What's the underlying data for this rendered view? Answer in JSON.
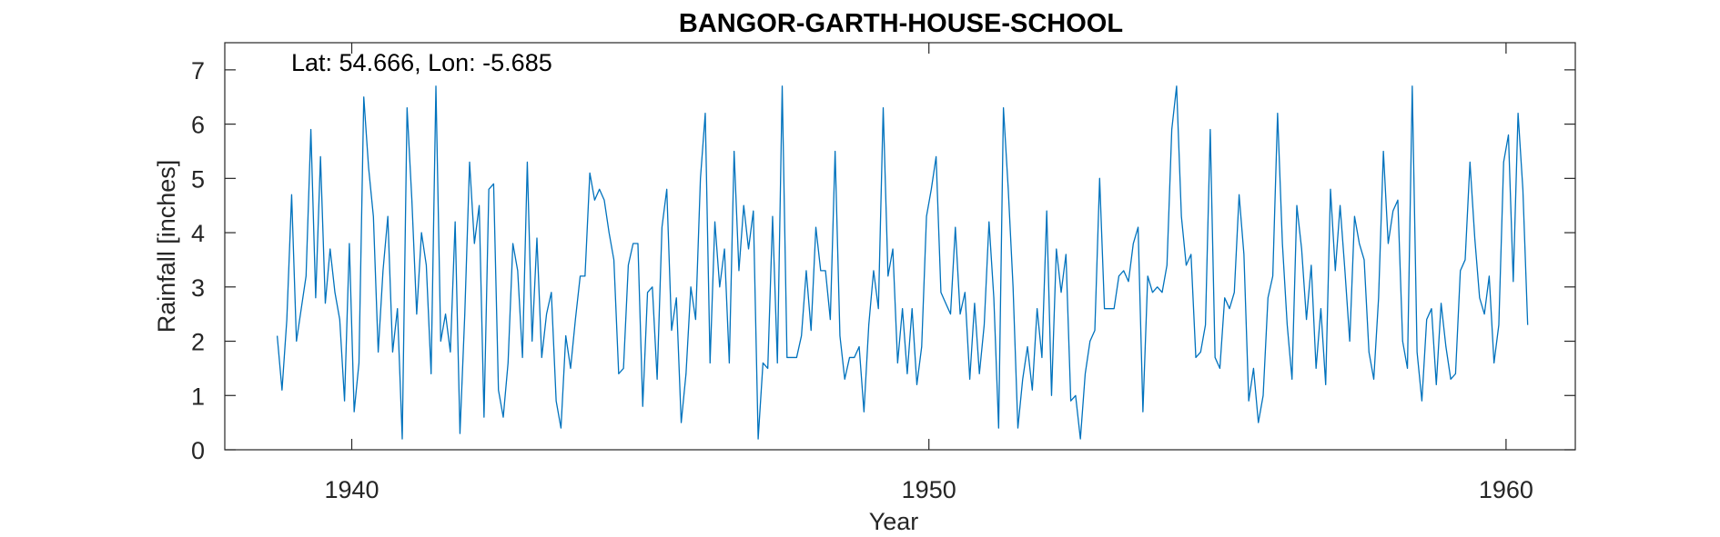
{
  "chart_data": {
    "type": "line",
    "title": "BANGOR-GARTH-HOUSE-SCHOOL",
    "xlabel": "Year",
    "ylabel": "Rainfall [inches]",
    "annotation": "Lat: 54.666, Lon: -5.685",
    "xlim": [
      1937.8,
      1961.2
    ],
    "ylim": [
      0,
      7.5
    ],
    "xticks": [
      1940,
      1950,
      1960
    ],
    "yticks": [
      0,
      1,
      2,
      3,
      4,
      5,
      6,
      7
    ],
    "grid": false,
    "box": true,
    "line_color": "#0072BD",
    "series": [
      {
        "x_start": 1938.708333,
        "x_step": 0.083333,
        "values": [
          2.1,
          1.1,
          2.4,
          4.7,
          2.0,
          2.6,
          3.2,
          5.9,
          2.8,
          5.4,
          2.7,
          3.7,
          2.9,
          2.4,
          0.9,
          3.8,
          0.7,
          1.6,
          6.5,
          5.2,
          4.3,
          1.8,
          3.3,
          4.3,
          1.8,
          2.6,
          0.2,
          6.3,
          4.6,
          2.5,
          4.0,
          3.4,
          1.4,
          6.7,
          2.0,
          2.5,
          1.8,
          4.2,
          0.3,
          2.5,
          5.3,
          3.8,
          4.5,
          0.6,
          4.8,
          4.9,
          1.1,
          0.6,
          1.6,
          3.8,
          3.3,
          1.7,
          5.3,
          2.0,
          3.9,
          1.7,
          2.5,
          2.9,
          0.9,
          0.4,
          2.1,
          1.5,
          2.4,
          3.2,
          3.2,
          5.1,
          4.6,
          4.8,
          4.6,
          4.0,
          3.5,
          1.4,
          1.5,
          3.4,
          3.8,
          3.8,
          0.8,
          2.9,
          3.0,
          1.3,
          4.1,
          4.8,
          2.2,
          2.8,
          0.5,
          1.4,
          3.0,
          2.4,
          5.0,
          6.2,
          1.6,
          4.2,
          3.0,
          3.7,
          1.6,
          5.5,
          3.3,
          4.5,
          3.7,
          4.4,
          0.2,
          1.6,
          1.5,
          4.3,
          1.6,
          6.7,
          1.7,
          1.7,
          1.7,
          2.1,
          3.3,
          2.2,
          4.1,
          3.3,
          3.3,
          2.4,
          5.5,
          2.1,
          1.3,
          1.7,
          1.7,
          1.9,
          0.7,
          2.3,
          3.3,
          2.6,
          6.3,
          3.2,
          3.7,
          1.6,
          2.6,
          1.4,
          2.6,
          1.2,
          1.9,
          4.3,
          4.8,
          5.4,
          2.9,
          2.7,
          2.5,
          4.1,
          2.5,
          2.9,
          1.3,
          2.7,
          1.4,
          2.3,
          4.2,
          2.8,
          0.4,
          6.3,
          4.8,
          3.0,
          0.4,
          1.3,
          1.9,
          1.1,
          2.6,
          1.7,
          4.4,
          1.0,
          3.7,
          2.9,
          3.6,
          0.9,
          1.0,
          0.2,
          1.4,
          2.0,
          2.2,
          5.0,
          2.6,
          2.6,
          2.6,
          3.2,
          3.3,
          3.1,
          3.8,
          4.1,
          0.7,
          3.2,
          2.9,
          3.0,
          2.9,
          3.4,
          5.9,
          6.7,
          4.3,
          3.4,
          3.6,
          1.7,
          1.8,
          2.3,
          5.9,
          1.7,
          1.5,
          2.8,
          2.6,
          2.9,
          4.7,
          3.6,
          0.9,
          1.5,
          0.5,
          1.0,
          2.8,
          3.2,
          6.2,
          3.8,
          2.3,
          1.3,
          4.5,
          3.7,
          2.4,
          3.4,
          1.5,
          2.6,
          1.2,
          4.8,
          3.3,
          4.5,
          3.3,
          2.0,
          4.3,
          3.8,
          3.5,
          1.8,
          1.3,
          2.8,
          5.5,
          3.8,
          4.4,
          4.6,
          2.0,
          1.5,
          6.7,
          1.8,
          0.9,
          2.4,
          2.6,
          1.2,
          2.7,
          1.9,
          1.3,
          1.4,
          3.3,
          3.5,
          5.3,
          3.9,
          2.8,
          2.5,
          3.2,
          1.6,
          2.3,
          5.3,
          5.8,
          3.1,
          6.2,
          4.8,
          2.3
        ]
      }
    ]
  }
}
